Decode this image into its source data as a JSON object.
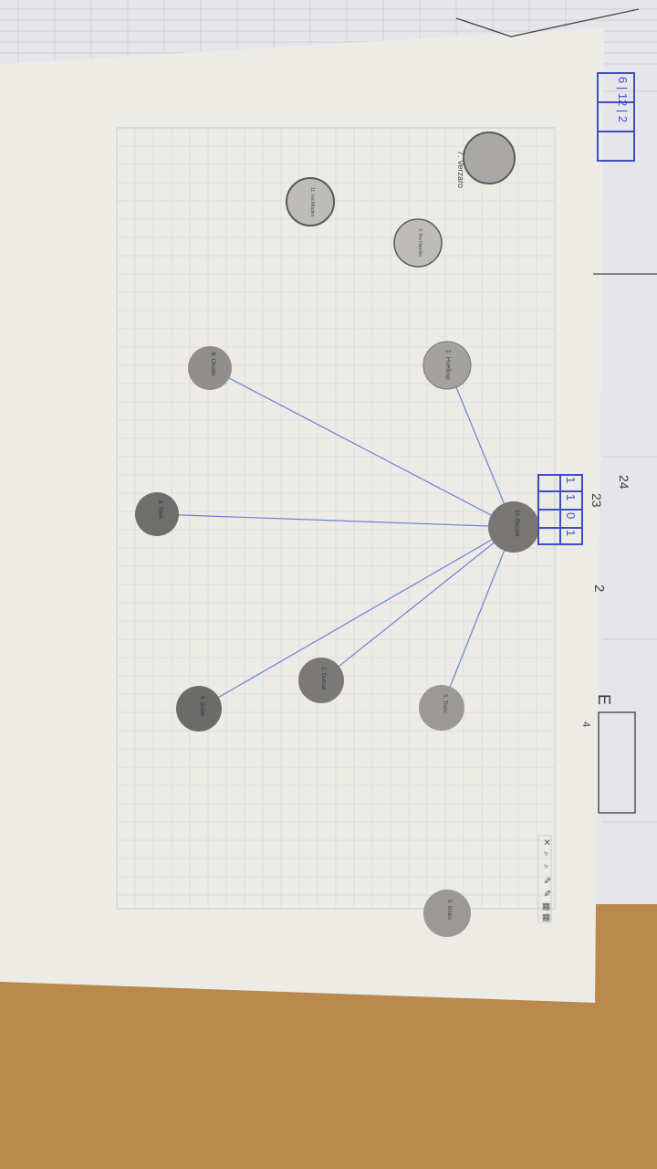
{
  "photo": {
    "description_free": true,
    "colors": {
      "table": "#b98a4c",
      "paper": "#ecebe6",
      "grid": "#c7c9d0",
      "edge": "#6f7fd6",
      "ink": "#3d4fc2",
      "node_light": "#9a9996",
      "node_dark": "#6e6e6d"
    }
  },
  "graph": {
    "center": {
      "label": "10. Boczek"
    },
    "nodes": [
      {
        "id": "n7",
        "label": "7. Verzaro",
        "shade": "light",
        "connected": false
      },
      {
        "id": "n_a",
        "label": "11. Iva Mladen",
        "shade": "light",
        "connected": false
      },
      {
        "id": "n_b",
        "label": "3. Riv Hamiko",
        "shade": "light",
        "connected": false
      },
      {
        "id": "n1",
        "label": "1. Hvelkop",
        "shade": "light",
        "connected": true
      },
      {
        "id": "n6",
        "label": "6. Chudin",
        "shade": "light",
        "connected": true
      },
      {
        "id": "n8",
        "label": "8. Tilnik",
        "shade": "dark",
        "connected": true
      },
      {
        "id": "n2",
        "label": "2. Dumak",
        "shade": "dark",
        "connected": true
      },
      {
        "id": "n4",
        "label": "4. Golak",
        "shade": "dark",
        "connected": true
      },
      {
        "id": "n5",
        "label": "5. Tivmi",
        "shade": "light",
        "connected": true
      },
      {
        "id": "n9",
        "label": "9. Gluko",
        "shade": "light",
        "connected": false
      }
    ]
  },
  "handwriting": {
    "top_box": "6 | 12 | 2",
    "cells": [
      "1",
      "1",
      "0",
      "1"
    ],
    "mark_2": "2",
    "mark_24": "24",
    "mark_23": "23",
    "mark_E": "E",
    "mark_4": "4"
  },
  "toolbar": {
    "items": [
      "✕",
      "⌕",
      "⌕",
      "✎",
      "✎",
      "▦",
      "▦"
    ]
  }
}
